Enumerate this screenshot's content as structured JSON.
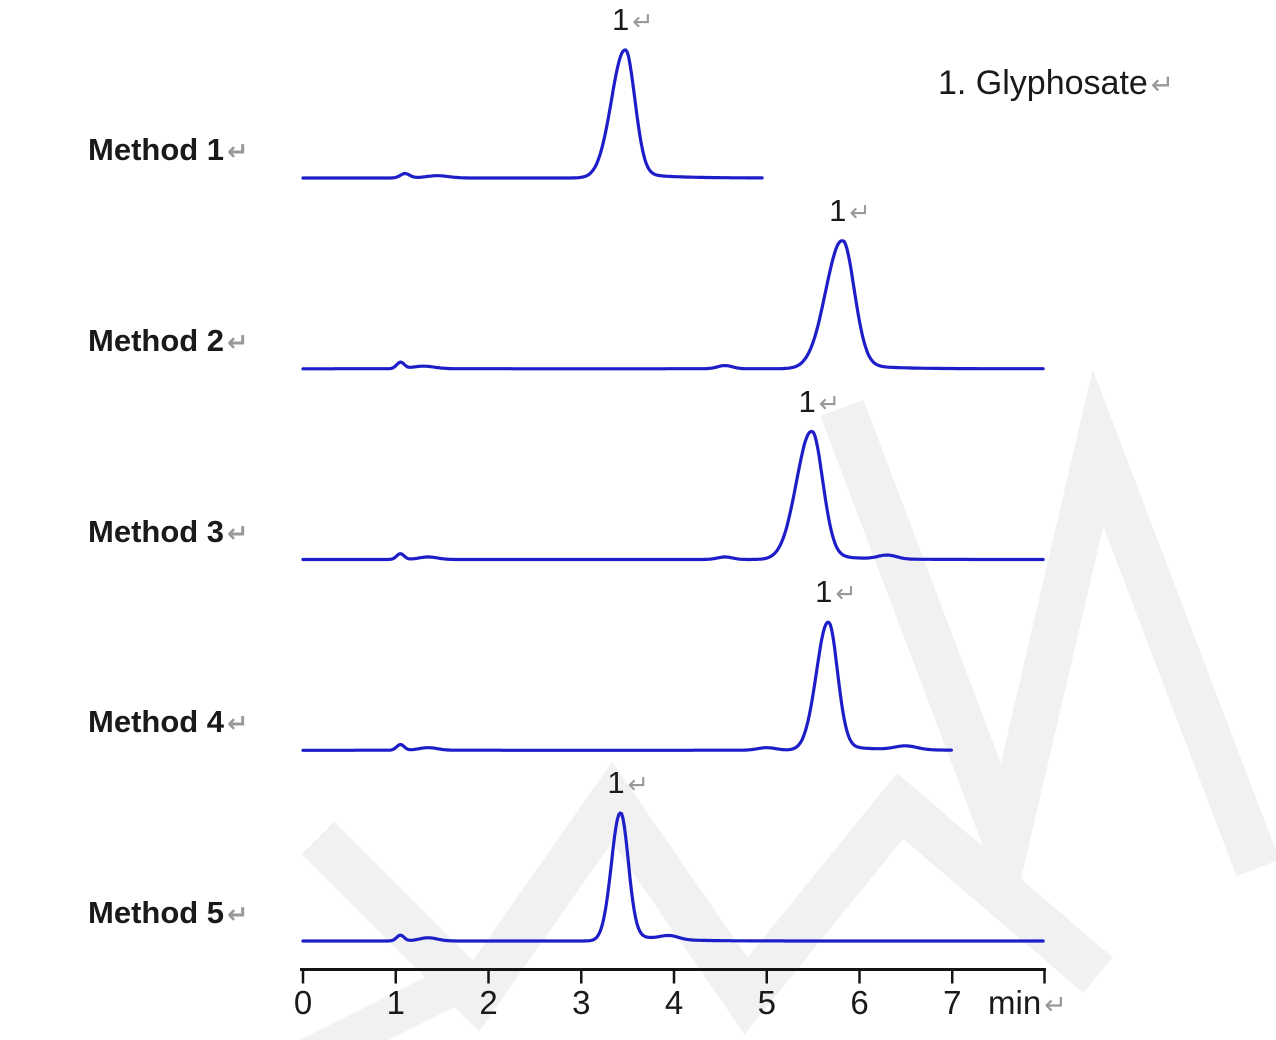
{
  "figure": {
    "return_mark": "↵",
    "legend_text": "1. Glyphosate",
    "axis": {
      "ticks": [
        "0",
        "1",
        "2",
        "3",
        "4",
        "5",
        "6",
        "7"
      ],
      "unit_label": "min",
      "x_min": 0,
      "x_max": 8
    },
    "colors": {
      "trace": "#1e1ec8",
      "axis": "#141414",
      "text": "#1a1a1a",
      "return_mark": "#999999",
      "watermark": "#f1f1f3",
      "background": "#ffffff"
    }
  },
  "chart_data": {
    "type": "line",
    "title": "",
    "xlabel": "min",
    "ylabel": "",
    "x_range": [
      0,
      8
    ],
    "grid": false,
    "legend_position": "top-right",
    "peak_identity": {
      "1": "Glyphosate"
    },
    "series": [
      {
        "name": "Method 1",
        "peak_label": "1",
        "peak_rt_min": 3.47,
        "peak_height_rel": 1.0,
        "sigma_left_min": 0.145,
        "sigma_right_min": 0.105,
        "tail": 0.05,
        "trace_start_min": 0,
        "trace_end_min": 4.96,
        "bumps": [
          {
            "rt": 1.1,
            "h": 0.035,
            "sigma": 0.05
          },
          {
            "rt": 1.45,
            "h": 0.018,
            "sigma": 0.12
          }
        ]
      },
      {
        "name": "Method 2",
        "peak_label": "1",
        "peak_rt_min": 5.81,
        "peak_height_rel": 1.0,
        "sigma_left_min": 0.175,
        "sigma_right_min": 0.13,
        "tail": 0.05,
        "trace_start_min": 0,
        "trace_end_min": 7.98,
        "bumps": [
          {
            "rt": 1.05,
            "h": 0.05,
            "sigma": 0.04
          },
          {
            "rt": 1.3,
            "h": 0.02,
            "sigma": 0.12
          },
          {
            "rt": 4.55,
            "h": 0.025,
            "sigma": 0.08
          }
        ]
      },
      {
        "name": "Method 3",
        "peak_label": "1",
        "peak_rt_min": 5.48,
        "peak_height_rel": 1.0,
        "sigma_left_min": 0.16,
        "sigma_right_min": 0.12,
        "tail": 0.05,
        "trace_start_min": 0,
        "trace_end_min": 7.98,
        "bumps": [
          {
            "rt": 1.05,
            "h": 0.045,
            "sigma": 0.04
          },
          {
            "rt": 1.35,
            "h": 0.02,
            "sigma": 0.1
          },
          {
            "rt": 4.55,
            "h": 0.02,
            "sigma": 0.08
          },
          {
            "rt": 6.3,
            "h": 0.03,
            "sigma": 0.1
          }
        ]
      },
      {
        "name": "Method 4",
        "peak_label": "1",
        "peak_rt_min": 5.66,
        "peak_height_rel": 1.0,
        "sigma_left_min": 0.125,
        "sigma_right_min": 0.1,
        "tail": 0.05,
        "trace_start_min": 0,
        "trace_end_min": 7.0,
        "bumps": [
          {
            "rt": 1.05,
            "h": 0.045,
            "sigma": 0.04
          },
          {
            "rt": 1.35,
            "h": 0.02,
            "sigma": 0.1
          },
          {
            "rt": 5.0,
            "h": 0.02,
            "sigma": 0.1
          },
          {
            "rt": 6.5,
            "h": 0.03,
            "sigma": 0.12
          }
        ]
      },
      {
        "name": "Method 5",
        "peak_label": "1",
        "peak_rt_min": 3.42,
        "peak_height_rel": 1.0,
        "sigma_left_min": 0.095,
        "sigma_right_min": 0.085,
        "tail": 0.06,
        "trace_start_min": 0,
        "trace_end_min": 7.98,
        "bumps": [
          {
            "rt": 1.05,
            "h": 0.045,
            "sigma": 0.04
          },
          {
            "rt": 1.35,
            "h": 0.025,
            "sigma": 0.1
          },
          {
            "rt": 3.95,
            "h": 0.03,
            "sigma": 0.1
          }
        ]
      }
    ]
  }
}
